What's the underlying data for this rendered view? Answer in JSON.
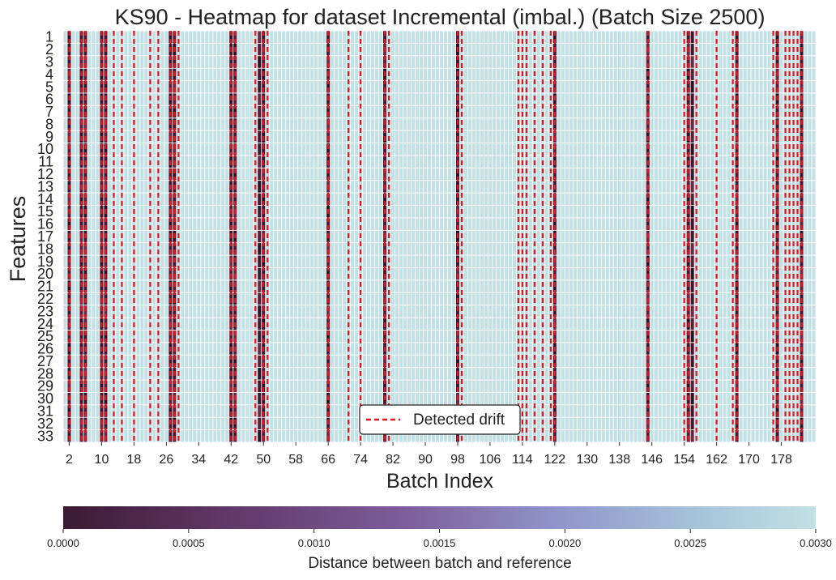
{
  "chart_data": {
    "type": "heatmap",
    "title": "KS90 - Heatmap for dataset Incremental (imbal.) (Batch Size 2500)",
    "xlabel": "Batch Index",
    "ylabel": "Features",
    "x_start": 1,
    "x_end": 186,
    "x_ticks": [
      2,
      10,
      18,
      26,
      34,
      42,
      50,
      58,
      66,
      74,
      82,
      90,
      98,
      106,
      114,
      122,
      130,
      138,
      146,
      154,
      162,
      170,
      178
    ],
    "features": [
      "1",
      "2",
      "3",
      "4",
      "5",
      "6",
      "7",
      "8",
      "9",
      "10",
      "11",
      "12",
      "13",
      "14",
      "15",
      "16",
      "17",
      "18",
      "19",
      "20",
      "21",
      "22",
      "23",
      "24",
      "25",
      "26",
      "27",
      "28",
      "29",
      "30",
      "31",
      "32",
      "33"
    ],
    "detected_drift_batches": [
      2,
      5,
      6,
      10,
      11,
      13,
      15,
      18,
      22,
      24,
      27,
      28,
      29,
      42,
      43,
      48,
      50,
      51,
      66,
      71,
      74,
      80,
      81,
      98,
      99,
      113,
      114,
      115,
      117,
      119,
      121,
      122,
      145,
      154,
      155,
      157,
      162,
      166,
      167,
      176,
      177,
      179,
      180,
      181,
      182,
      183
    ],
    "dark_column_groups": [
      {
        "batches": [
          2
        ],
        "features": "1-33"
      },
      {
        "batches": [
          5,
          6
        ],
        "features": "1-33"
      },
      {
        "batches": [
          10,
          11
        ],
        "features": "1-33"
      },
      {
        "batches": [
          27,
          28
        ],
        "features": "1-33"
      },
      {
        "batches": [
          42,
          43
        ],
        "features": "1-33"
      },
      {
        "batches": [
          49,
          50
        ],
        "features": "1-33"
      },
      {
        "batches": [
          66
        ],
        "features": "1-33"
      },
      {
        "batches": [
          80
        ],
        "features": "1-33"
      },
      {
        "batches": [
          98
        ],
        "features": "1-33"
      },
      {
        "batches": [
          122
        ],
        "features": "1-33"
      },
      {
        "batches": [
          145
        ],
        "features": "1-33"
      },
      {
        "batches": [
          155,
          156
        ],
        "features": "1-33"
      },
      {
        "batches": [
          167
        ],
        "features": "1-33"
      },
      {
        "batches": [
          177
        ],
        "features": "1-33"
      },
      {
        "batches": [
          183
        ],
        "features": "1-33"
      }
    ],
    "colorbar": {
      "label": "Distance between batch and reference",
      "min": 0.0,
      "max": 0.003,
      "ticks": [
        "0.0000",
        "0.0005",
        "0.0010",
        "0.0015",
        "0.0020",
        "0.0025",
        "0.0030"
      ],
      "colormap": [
        "#3b1a33",
        "#5e3563",
        "#7d5c9a",
        "#8f93c9",
        "#a7c5da",
        "#c3e0e4"
      ]
    },
    "legend": {
      "label": "Detected drift",
      "placement": "bottom-center",
      "color": "#e8141b"
    },
    "grid": true
  }
}
